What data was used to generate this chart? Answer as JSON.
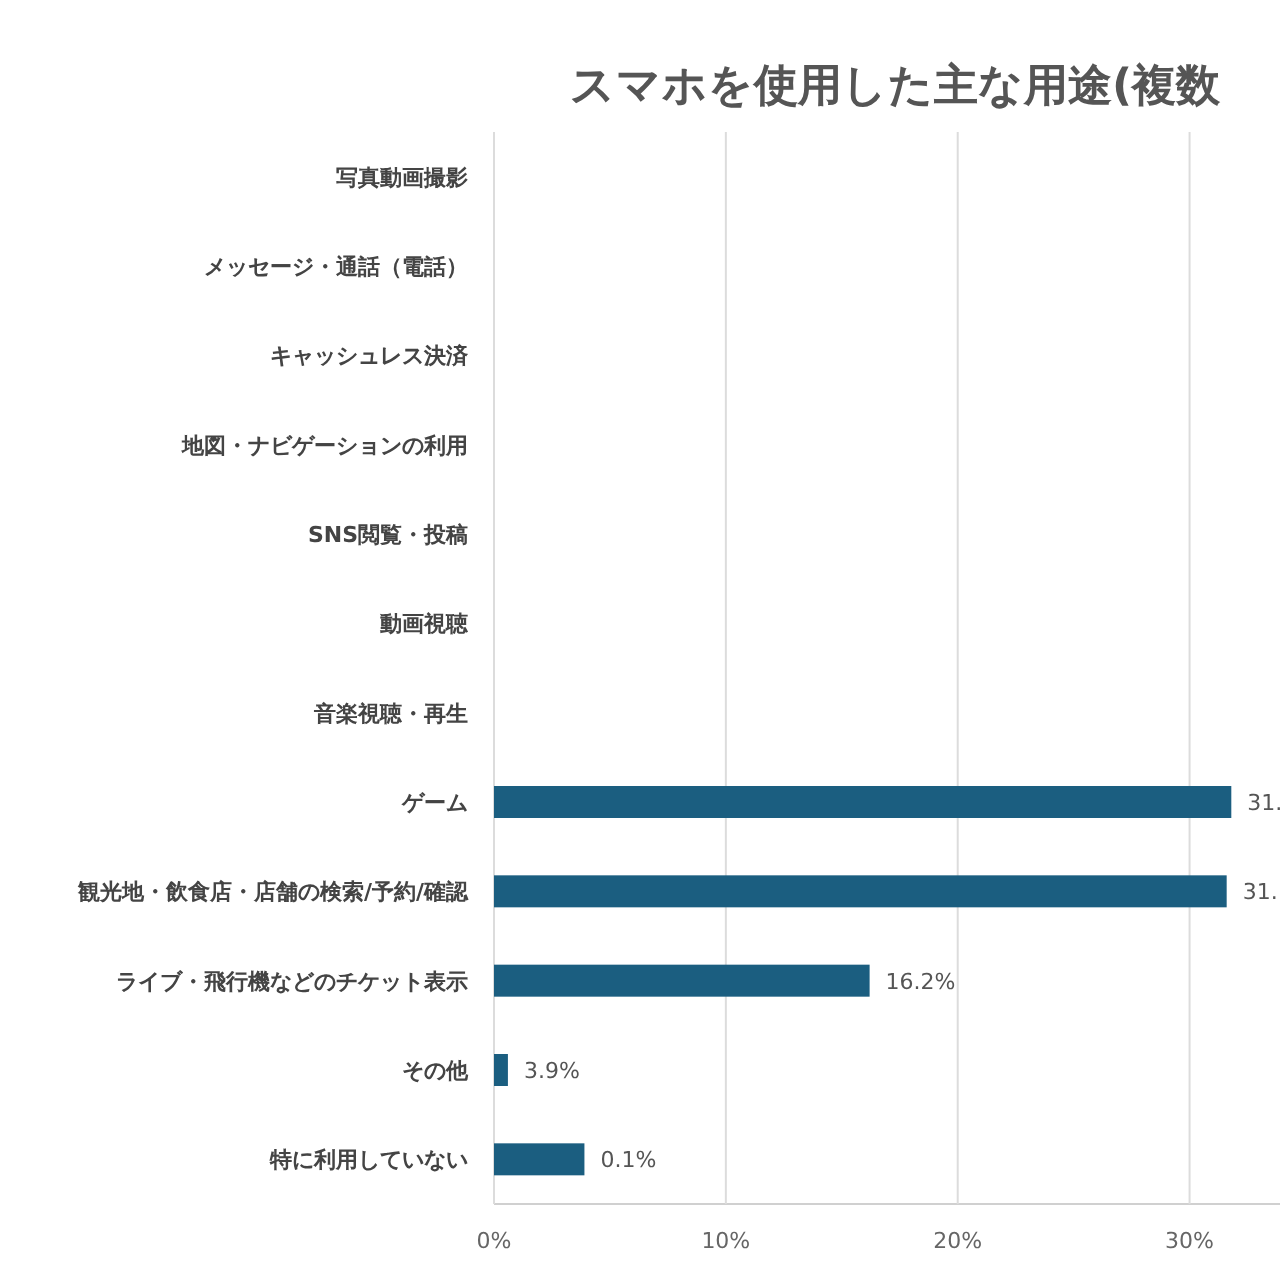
{
  "chart_data": {
    "type": "bar",
    "orientation": "horizontal",
    "title": "スマホを使用した主な用途(複数",
    "categories": [
      "写真動画撮影",
      "メッセージ・通話（電話）",
      "キャッシュレス決済",
      "地図・ナビゲーションの利用",
      "SNS閲覧・投稿",
      "動画視聴",
      "音楽視聴・再生",
      "ゲーム",
      "観光地・飲食店・店舗の検索/予約/確認",
      "ライブ・飛行機などのチケット表示",
      "その他",
      "特に利用していない"
    ],
    "series": [
      {
        "color": "#1b5e80",
        "values": [
          null,
          null,
          null,
          null,
          null,
          null,
          null,
          31.8,
          31.6,
          16.2,
          0.6,
          3.9
        ]
      }
    ],
    "value_labels": [
      null,
      null,
      null,
      null,
      null,
      null,
      null,
      "31.",
      "31.",
      "16.2%",
      "3.9%",
      "0.1%"
    ],
    "xlim": [
      0,
      33.9
    ],
    "xticks": [
      {
        "value": 0,
        "label": "0%"
      },
      {
        "value": 10,
        "label": "10%"
      },
      {
        "value": 20,
        "label": "20%"
      },
      {
        "value": 30,
        "label": "30%"
      }
    ],
    "grid": "x"
  }
}
